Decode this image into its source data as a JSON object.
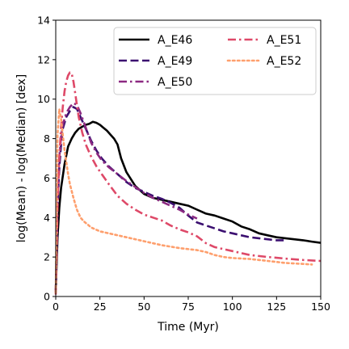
{
  "chart_data": {
    "type": "line",
    "xlabel": "Time (Myr)",
    "ylabel": "log(Mean) - log(Median) [dex]",
    "xlim": [
      0,
      150
    ],
    "ylim": [
      0,
      14
    ],
    "xticks": [
      0,
      25,
      50,
      75,
      100,
      125,
      150
    ],
    "yticks": [
      0,
      2,
      4,
      6,
      8,
      10,
      12,
      14
    ],
    "grid": false,
    "legend_position": "top-right",
    "series": [
      {
        "name": "A_E46",
        "color": "#000000",
        "dash": "solid",
        "x": [
          0,
          1,
          2,
          3,
          5,
          7,
          9,
          11,
          13,
          15,
          17,
          19,
          21,
          23,
          25,
          27,
          29,
          31,
          33,
          35,
          37,
          40,
          45,
          50,
          55,
          60,
          65,
          70,
          75,
          80,
          85,
          90,
          95,
          100,
          105,
          110,
          115,
          120,
          125,
          130,
          135,
          140,
          145,
          150
        ],
        "y": [
          0.2,
          3.0,
          4.5,
          5.5,
          6.7,
          7.6,
          8.0,
          8.3,
          8.5,
          8.6,
          8.7,
          8.75,
          8.85,
          8.8,
          8.7,
          8.55,
          8.4,
          8.2,
          8.0,
          7.7,
          7.0,
          6.3,
          5.6,
          5.2,
          5.0,
          4.9,
          4.8,
          4.7,
          4.6,
          4.4,
          4.2,
          4.1,
          3.95,
          3.8,
          3.55,
          3.4,
          3.2,
          3.1,
          3.0,
          2.95,
          2.9,
          2.85,
          2.78,
          2.72
        ]
      },
      {
        "name": "A_E49",
        "color": "#3b0f70",
        "dash": "dashed",
        "x": [
          0,
          1,
          2,
          3,
          4,
          6,
          8,
          10,
          12,
          14,
          16,
          18,
          20,
          23,
          26,
          30,
          35,
          40,
          45,
          50,
          55,
          60,
          65,
          70,
          75,
          80,
          85,
          90,
          95,
          100,
          105,
          110,
          115,
          120,
          125,
          130
        ],
        "y": [
          0.2,
          4.5,
          6.5,
          7.7,
          8.5,
          9.1,
          9.4,
          9.6,
          9.5,
          9.1,
          8.7,
          8.3,
          7.9,
          7.4,
          7.0,
          6.6,
          6.2,
          5.8,
          5.5,
          5.3,
          5.1,
          4.95,
          4.75,
          4.5,
          4.1,
          3.75,
          3.6,
          3.45,
          3.3,
          3.2,
          3.1,
          3.0,
          2.95,
          2.9,
          2.85,
          2.85
        ]
      },
      {
        "name": "A_E50",
        "color": "#8c2981",
        "dash": "dashdot",
        "x": [
          0,
          1,
          2,
          3,
          4,
          6,
          8,
          10,
          12,
          14,
          16,
          18,
          20,
          23,
          26,
          30,
          35,
          40,
          45,
          50,
          55,
          60,
          65,
          70,
          75,
          80
        ],
        "y": [
          0.2,
          5.0,
          7.0,
          8.1,
          8.7,
          9.3,
          9.6,
          9.8,
          9.7,
          9.3,
          8.8,
          8.3,
          7.8,
          7.3,
          6.9,
          6.55,
          6.2,
          5.85,
          5.55,
          5.25,
          5.0,
          4.8,
          4.6,
          4.4,
          4.15,
          3.95
        ]
      },
      {
        "name": "A_E51",
        "color": "#de4968",
        "dash": "dashdot",
        "x": [
          0,
          1,
          2,
          3,
          4,
          5,
          6,
          7,
          8,
          9,
          10,
          11,
          12,
          13,
          15,
          17,
          20,
          23,
          26,
          30,
          35,
          40,
          45,
          50,
          55,
          60,
          65,
          70,
          75,
          80,
          85,
          90,
          95,
          100,
          105,
          110,
          120,
          130,
          140,
          150
        ],
        "y": [
          0.1,
          4.5,
          7.0,
          8.6,
          9.6,
          10.4,
          10.9,
          11.2,
          11.35,
          11.3,
          10.9,
          10.3,
          9.7,
          9.1,
          8.3,
          7.7,
          7.1,
          6.6,
          6.2,
          5.7,
          5.1,
          4.7,
          4.4,
          4.15,
          4.0,
          3.85,
          3.6,
          3.4,
          3.25,
          3.05,
          2.7,
          2.5,
          2.4,
          2.3,
          2.2,
          2.1,
          2.0,
          1.92,
          1.85,
          1.8
        ]
      },
      {
        "name": "A_E52",
        "color": "#fe9f6d",
        "dash": "dotted",
        "x": [
          0,
          1,
          2,
          3,
          4,
          5,
          6,
          7,
          8,
          10,
          12,
          14,
          16,
          18,
          20,
          25,
          30,
          40,
          50,
          60,
          70,
          80,
          85,
          90,
          95,
          100,
          110,
          120,
          130,
          140,
          145
        ],
        "y": [
          0.2,
          8.2,
          9.5,
          9.0,
          8.2,
          7.4,
          6.8,
          6.2,
          5.7,
          5.0,
          4.4,
          4.0,
          3.8,
          3.65,
          3.5,
          3.3,
          3.2,
          3.0,
          2.8,
          2.6,
          2.45,
          2.35,
          2.25,
          2.1,
          2.0,
          1.95,
          1.9,
          1.8,
          1.7,
          1.65,
          1.62
        ]
      }
    ]
  }
}
